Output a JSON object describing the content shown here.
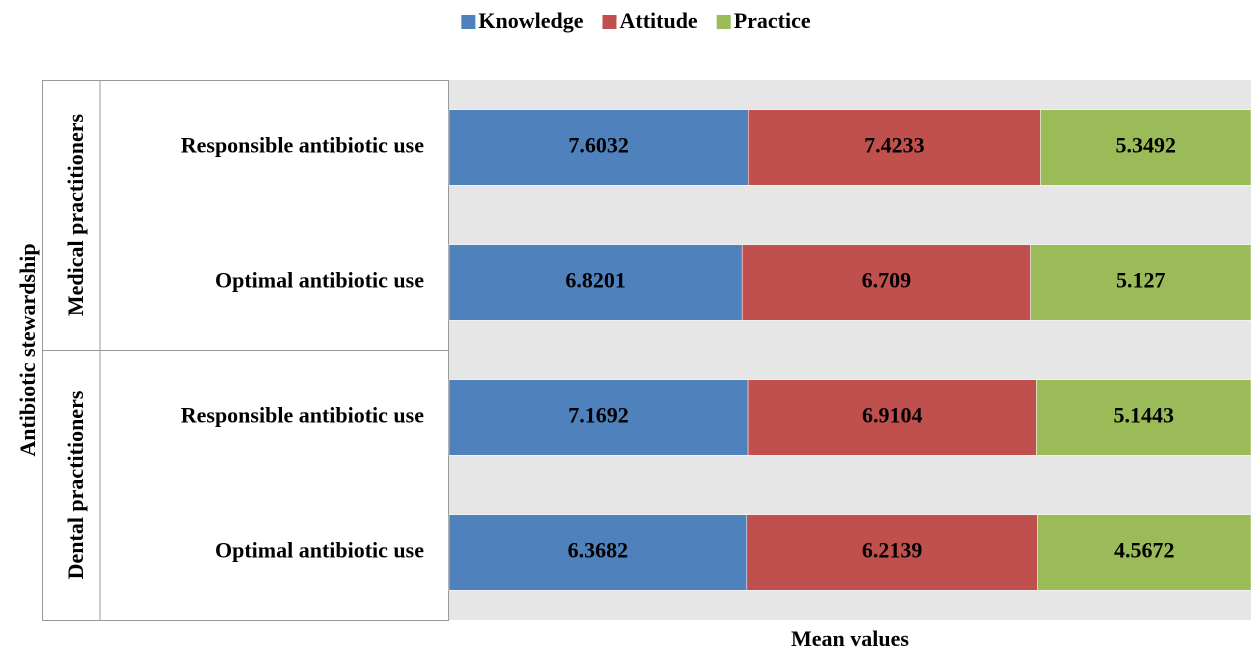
{
  "chart_data": {
    "type": "bar",
    "orientation": "horizontal",
    "stacked": "percent",
    "y_axis_title": "Antibiotic stewardship",
    "x_axis_title": "Mean values",
    "groups": [
      {
        "name": "Medical practitioners",
        "categories": [
          "Responsible antibiotic use",
          "Optimal antibiotic use"
        ]
      },
      {
        "name": "Dental practitioners",
        "categories": [
          "Responsible antibiotic use",
          "Optimal antibiotic use"
        ]
      }
    ],
    "series": [
      {
        "name": "Knowledge",
        "color": "#4f81bd",
        "values": [
          7.6032,
          6.8201,
          7.1692,
          6.3682
        ]
      },
      {
        "name": "Attitude",
        "color": "#c0504d",
        "values": [
          7.4233,
          6.709,
          6.9104,
          6.2139
        ]
      },
      {
        "name": "Practice",
        "color": "#9bbb59",
        "values": [
          5.3492,
          5.127,
          5.1443,
          4.5672
        ]
      }
    ],
    "legend": "top",
    "data_labels": true
  }
}
